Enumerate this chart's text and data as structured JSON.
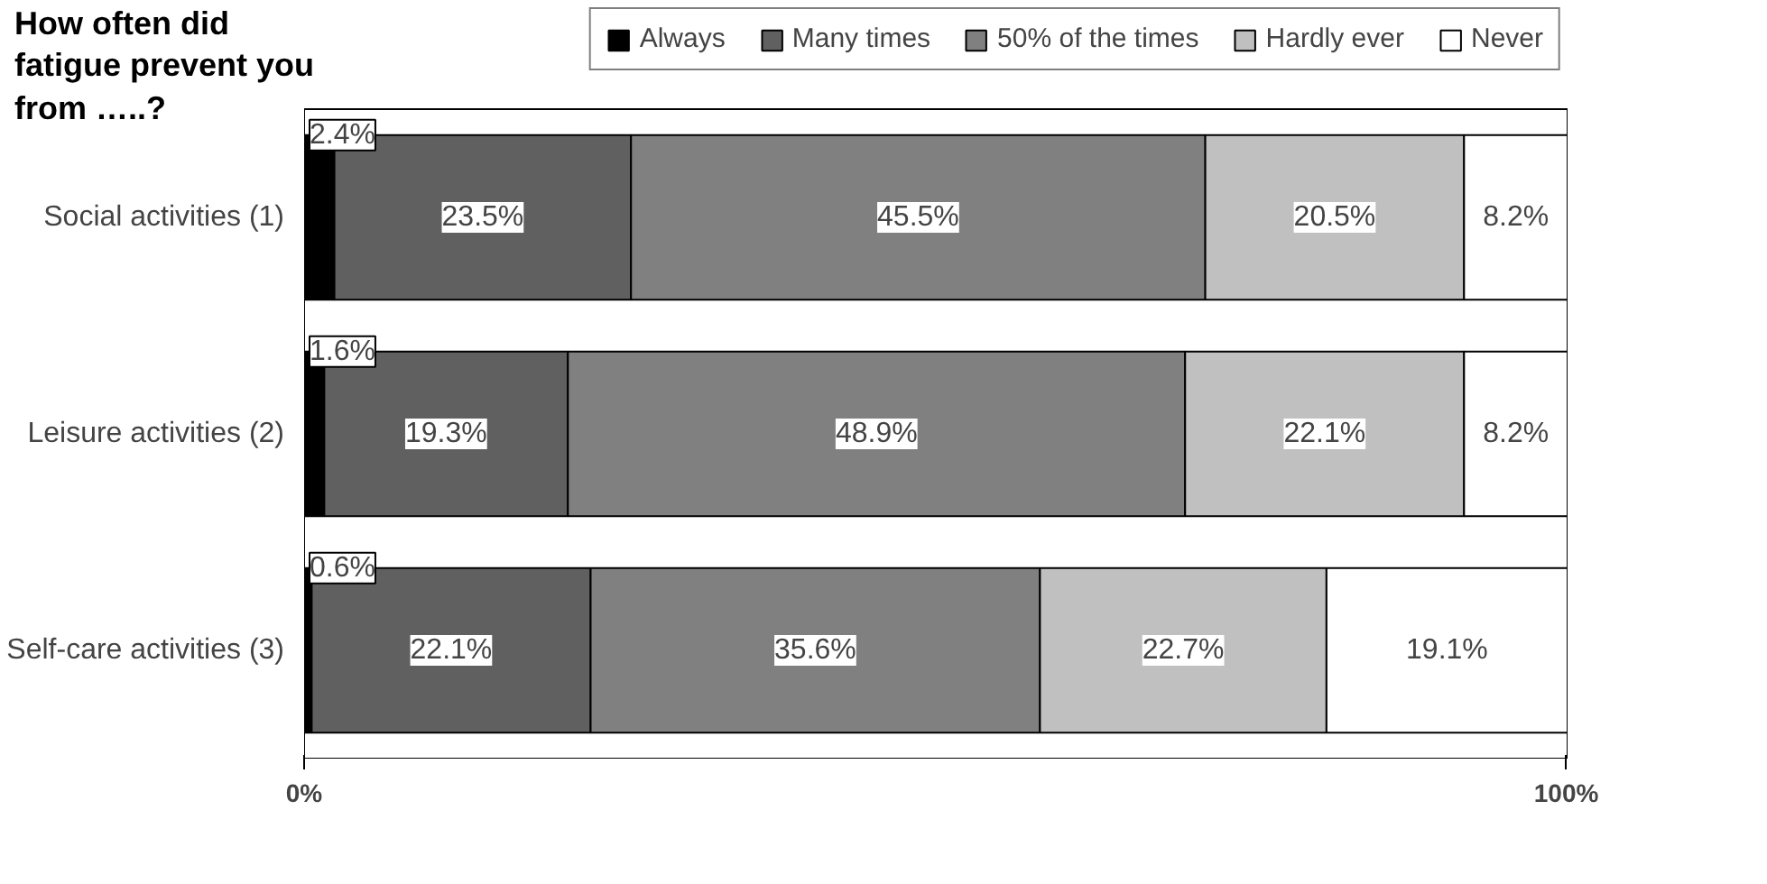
{
  "chart_data": {
    "type": "bar",
    "orientation": "horizontal",
    "stacked": true,
    "title": "How often did fatigue prevent you from …..?",
    "categories": [
      "Social activities (1)",
      "Leisure activities (2)",
      "Self-care activities (3)"
    ],
    "xlim": [
      0,
      100.1
    ],
    "xticks": [
      {
        "value": 0,
        "label": "0%"
      },
      {
        "value": 100,
        "label": "100%"
      }
    ],
    "grid": false,
    "legend": "top",
    "series": [
      {
        "name": "Always",
        "color": "#000000",
        "values": [
          2.4,
          1.6,
          0.6
        ],
        "value_labels": [
          "2.4%",
          "1.6%",
          "0.6%"
        ]
      },
      {
        "name": "Many times",
        "color": "#606060",
        "values": [
          23.5,
          19.3,
          22.1
        ],
        "value_labels": [
          "23.5%",
          "19.3%",
          "22.1%"
        ]
      },
      {
        "name": "50% of the times",
        "color": "#808080",
        "values": [
          45.5,
          48.9,
          35.6
        ],
        "value_labels": [
          "45.5%",
          "48.9%",
          "35.6%"
        ]
      },
      {
        "name": "Hardly ever",
        "color": "#c0c0c0",
        "values": [
          20.5,
          22.1,
          22.7
        ],
        "value_labels": [
          "20.5%",
          "22.1%",
          "22.7%"
        ]
      },
      {
        "name": "Never",
        "color": "#ffffff",
        "values": [
          8.2,
          8.2,
          19.1
        ],
        "value_labels": [
          "8.2%",
          "8.2%",
          "19.1%"
        ]
      }
    ]
  }
}
